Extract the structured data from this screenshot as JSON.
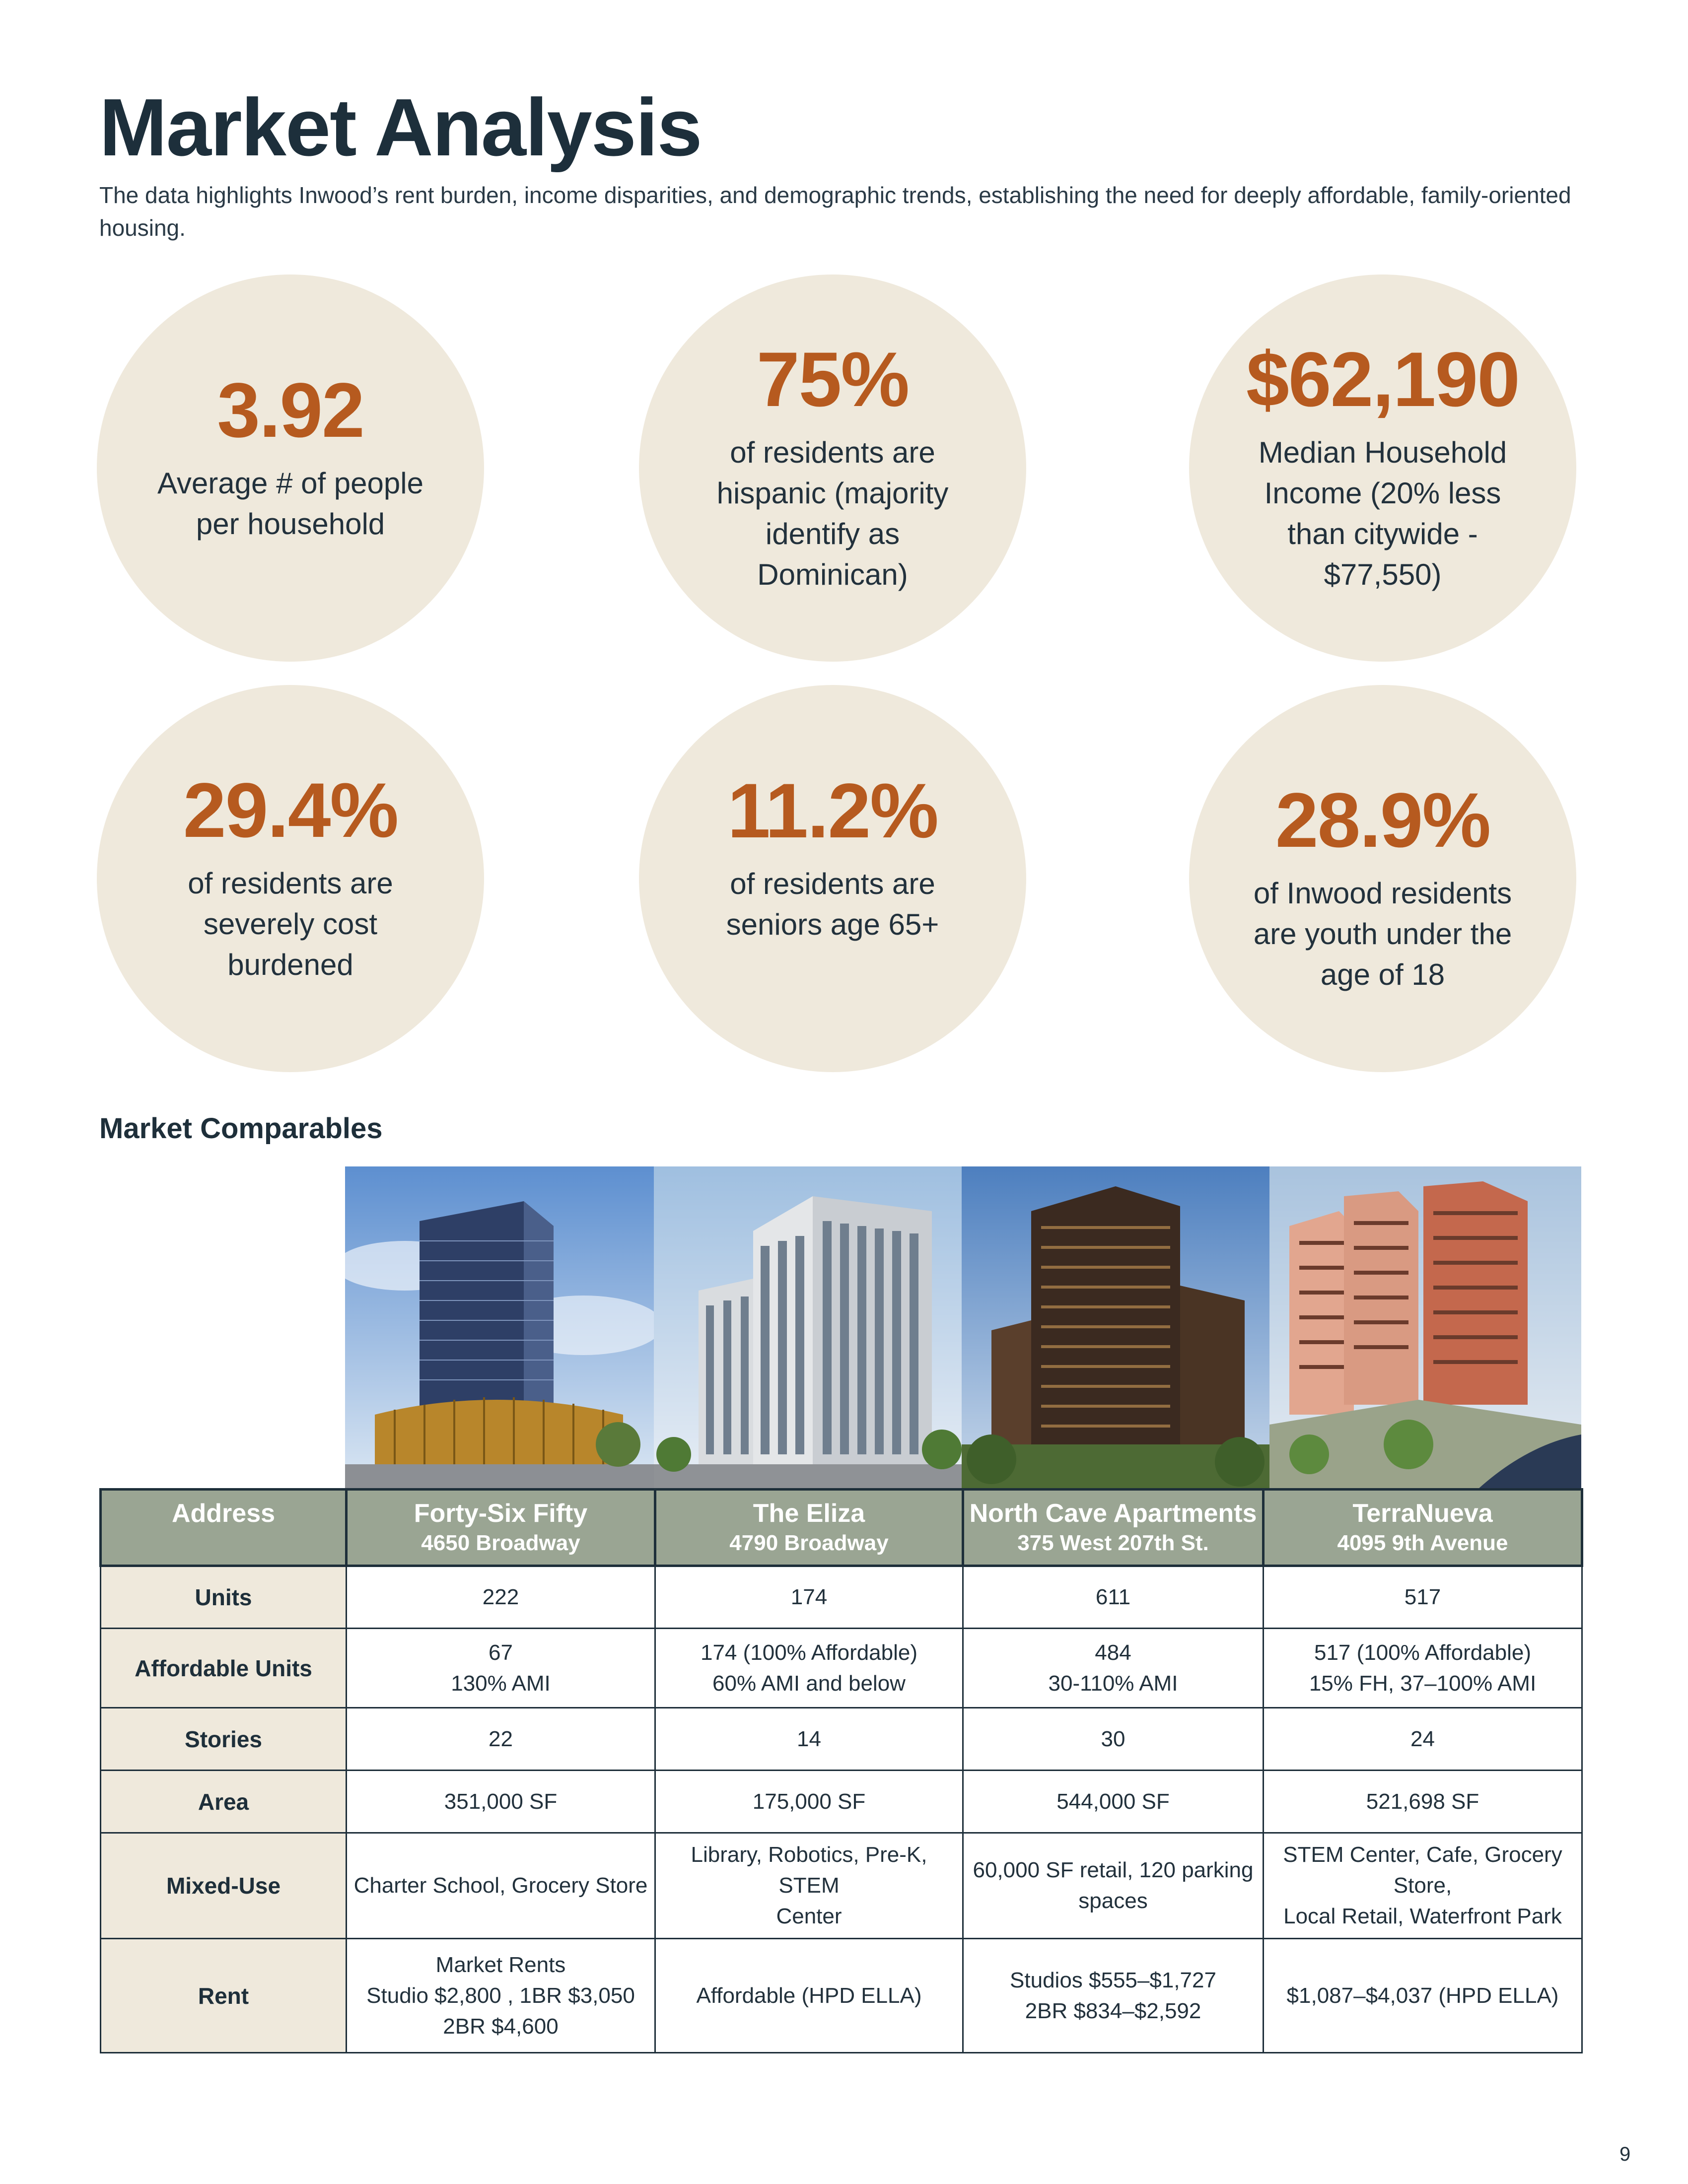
{
  "header": {
    "title": "Market Analysis",
    "subtitle": "The data highlights Inwood’s rent burden, income disparities, and demographic trends, establishing the need for deeply affordable, family-oriented housing."
  },
  "stats": [
    {
      "value": "3.92",
      "label": "Average # of people per household"
    },
    {
      "value": "75%",
      "label": "of residents are hispanic (majority identify as Dominican)"
    },
    {
      "value": "$62,190",
      "label": "Median Household Income (20% less than citywide - $77,550)"
    },
    {
      "value": "29.4%",
      "label": "of residents are severely cost burdened"
    },
    {
      "value": "11.2%",
      "label": "of residents are seniors age 65+"
    },
    {
      "value": "28.9%",
      "label": "of Inwood residents are youth under the age of 18"
    }
  ],
  "comparables": {
    "section_title": "Market Comparables",
    "address_header": "Address",
    "properties": [
      {
        "name": "Forty-Six Fifty",
        "address": "4650 Broadway"
      },
      {
        "name": "The Eliza",
        "address": "4790 Broadway"
      },
      {
        "name": "North Cave Apartments",
        "address": "375 West 207th St."
      },
      {
        "name": "TerraNueva",
        "address": "4095 9th Avenue"
      }
    ],
    "rows": [
      {
        "label": "Units",
        "cells": [
          [
            "222"
          ],
          [
            "174"
          ],
          [
            "611"
          ],
          [
            "517"
          ]
        ]
      },
      {
        "label": "Affordable Units",
        "cells": [
          [
            "67",
            "130% AMI"
          ],
          [
            "174 (100% Affordable)",
            "60% AMI and below"
          ],
          [
            "484",
            "30-110% AMI"
          ],
          [
            "517 (100% Affordable)",
            "15% FH, 37–100% AMI"
          ]
        ]
      },
      {
        "label": "Stories",
        "cells": [
          [
            "22"
          ],
          [
            "14"
          ],
          [
            "30"
          ],
          [
            "24"
          ]
        ]
      },
      {
        "label": "Area",
        "cells": [
          [
            "351,000  SF"
          ],
          [
            "175,000 SF"
          ],
          [
            "544,000 SF"
          ],
          [
            "521,698 SF"
          ]
        ]
      },
      {
        "label": "Mixed-Use",
        "cells": [
          [
            "Charter School, Grocery Store"
          ],
          [
            "Library, Robotics, Pre-K, STEM",
            "Center"
          ],
          [
            "60,000 SF retail, 120 parking",
            "spaces"
          ],
          [
            "STEM Center, Cafe, Grocery Store,",
            "Local Retail, Waterfront Park"
          ]
        ]
      },
      {
        "label": "Rent",
        "cells": [
          [
            "Market Rents",
            "Studio $2,800 , 1BR $3,050",
            "2BR $4,600"
          ],
          [
            "Affordable (HPD ELLA)"
          ],
          [
            "Studios $555–$1,727",
            "2BR $834–$2,592"
          ],
          [
            "$1,087–$4,037 (HPD ELLA)"
          ]
        ]
      }
    ]
  },
  "page_number": "9"
}
